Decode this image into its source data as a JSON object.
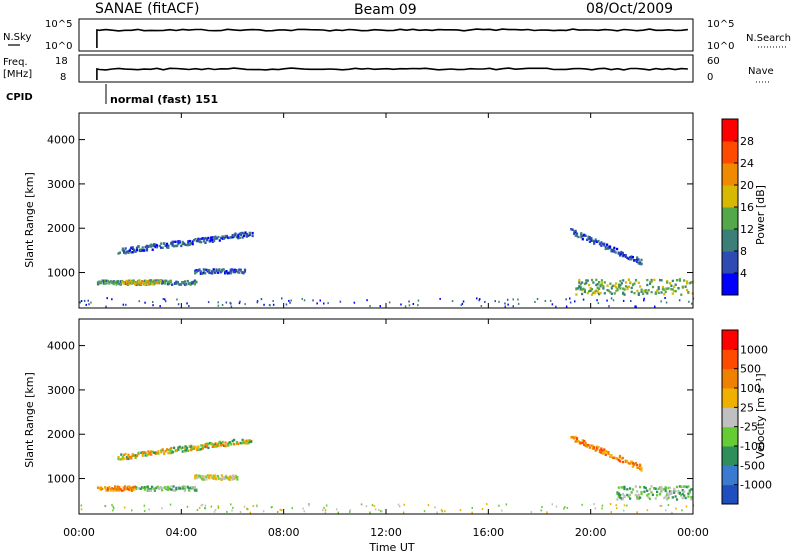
{
  "header": {
    "station": "SANAE (fitACF)",
    "beam": "Beam 09",
    "date": "08/Oct/2009"
  },
  "strips": {
    "nsky_label": "N.Sky",
    "nsky_ticks": [
      "10^5",
      "10^0"
    ],
    "nsearch_label": "N.Search",
    "nsearch_ticks": [
      "10^5",
      "10^0"
    ],
    "freq_label_1": "Freq.",
    "freq_label_2": "[MHz]",
    "freq_ticks": [
      "18",
      "8"
    ],
    "nave_label": "Nave",
    "nave_ticks": [
      "60",
      "0"
    ],
    "cpid_label": "CPID",
    "cpid_value": "normal (fast) 151"
  },
  "chart_data": [
    {
      "type": "heatmap",
      "name": "power",
      "ylabel": "Slant Range [km]",
      "yticks": [
        "1000",
        "2000",
        "3000",
        "4000"
      ],
      "ylim": [
        200,
        4600
      ],
      "xlim": [
        0,
        24
      ],
      "colorbar_label": "Power [dB]",
      "colorbar_ticks": [
        "4",
        "8",
        "12",
        "16",
        "20",
        "24",
        "28"
      ],
      "colorbar_colors": [
        "#0000ff",
        "#2d4bb3",
        "#3c7f78",
        "#55a84a",
        "#d8b800",
        "#f08a00",
        "#ff4b00",
        "#ff0000"
      ],
      "scatter_regions": [
        {
          "t_start": 0.7,
          "t_end": 4.6,
          "range_km": 800,
          "thickness_km": 100,
          "level": 2
        },
        {
          "t_start": 1.6,
          "t_end": 3.2,
          "range_km": 800,
          "thickness_km": 80,
          "level": 4
        },
        {
          "t_start": 1.5,
          "t_end": 6.8,
          "range_km": 1700,
          "thickness_km": 400,
          "level": 1
        },
        {
          "t_start": 4.5,
          "t_end": 6.5,
          "range_km": 1050,
          "thickness_km": 100,
          "level": 1
        },
        {
          "t_start": 19.4,
          "t_end": 24.0,
          "range_km": 700,
          "thickness_km": 350,
          "level": 3
        },
        {
          "t_start": 19.2,
          "t_end": 22.0,
          "range_km": 1600,
          "thickness_km": 700,
          "level": 1
        }
      ]
    },
    {
      "type": "heatmap",
      "name": "velocity",
      "ylabel": "Slant Range [km]",
      "yticks": [
        "1000",
        "2000",
        "3000",
        "4000"
      ],
      "ylim": [
        200,
        4600
      ],
      "xlim": [
        0,
        24
      ],
      "colorbar_label": "Velocity [m s⁻¹]",
      "colorbar_ticks": [
        "1000",
        "500",
        "100",
        "25",
        "-25",
        "-100",
        "-500",
        "-1000"
      ],
      "colorbar_colors": [
        "#1f4fbf",
        "#3a7ad0",
        "#2e8f5a",
        "#66cc33",
        "#c0c0c0",
        "#f0b000",
        "#f08000",
        "#ff4b00",
        "#ff0000"
      ],
      "scatter_regions": [
        {
          "t_start": 0.7,
          "t_end": 2.2,
          "range_km": 800,
          "thickness_km": 100,
          "level": "orange"
        },
        {
          "t_start": 2.2,
          "t_end": 4.6,
          "range_km": 800,
          "thickness_km": 100,
          "level": "green"
        },
        {
          "t_start": 1.5,
          "t_end": 6.8,
          "range_km": 1700,
          "thickness_km": 400,
          "level": "mixed"
        },
        {
          "t_start": 4.5,
          "t_end": 6.2,
          "range_km": 1050,
          "thickness_km": 100,
          "level": "yellow"
        },
        {
          "t_start": 19.2,
          "t_end": 22.0,
          "range_km": 1600,
          "thickness_km": 700,
          "level": "orange"
        },
        {
          "t_start": 21.0,
          "t_end": 24.0,
          "range_km": 700,
          "thickness_km": 300,
          "level": "green"
        }
      ]
    }
  ],
  "xaxis": {
    "ticks": [
      "00:00",
      "04:00",
      "08:00",
      "12:00",
      "16:00",
      "20:00",
      "00:00"
    ],
    "label": "Time UT"
  }
}
